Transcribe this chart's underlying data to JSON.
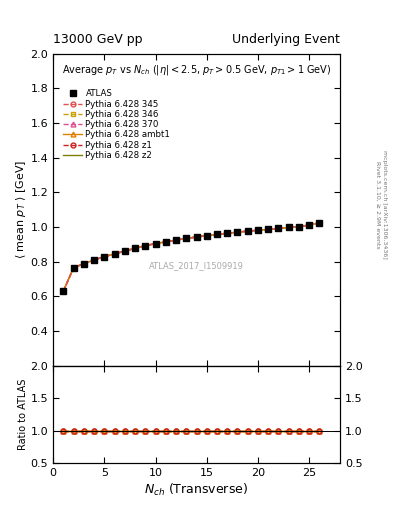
{
  "title_left": "13000 GeV pp",
  "title_right": "Underlying Event",
  "plot_title": "Average $p_T$ vs $N_{ch}$ ($|\\eta| < 2.5$, $p_T > 0.5$ GeV, $p_{T1} > 1$ GeV)",
  "watermark": "ATLAS_2017_I1509919",
  "ylabel_main": "$\\langle$ mean $p_T$ $\\rangle$ [GeV]",
  "ylabel_ratio": "Ratio to ATLAS",
  "xlabel": "$N_{ch}$ (Transverse)",
  "right_label_top": "Rivet 3.1.10, ≥ 2.9M events",
  "right_label_bot": "mcplots.cern.ch [arXiv:1306.3436]",
  "ylim_main": [
    0.2,
    2.0
  ],
  "ylim_ratio": [
    0.5,
    2.0
  ],
  "xlim": [
    0,
    28
  ],
  "nch_data": [
    1,
    2,
    3,
    4,
    5,
    6,
    7,
    8,
    9,
    10,
    11,
    12,
    13,
    14,
    15,
    16,
    17,
    18,
    19,
    20,
    21,
    22,
    23,
    24,
    25,
    26
  ],
  "atlas_y": [
    0.63,
    0.765,
    0.79,
    0.81,
    0.83,
    0.845,
    0.862,
    0.878,
    0.893,
    0.905,
    0.915,
    0.925,
    0.935,
    0.943,
    0.951,
    0.958,
    0.965,
    0.971,
    0.977,
    0.982,
    0.987,
    0.993,
    0.998,
    1.003,
    1.012,
    1.025
  ],
  "color_345": "#e05050",
  "color_346": "#c8a000",
  "color_370": "#e05090",
  "color_ambt1": "#e08000",
  "color_z1": "#cc2020",
  "color_z2": "#808000",
  "yticks_main": [
    0.4,
    0.6,
    0.8,
    1.0,
    1.2,
    1.4,
    1.6,
    1.8,
    2.0
  ],
  "yticks_ratio": [
    0.5,
    1.0,
    1.5,
    2.0
  ],
  "xticks": [
    0,
    5,
    10,
    15,
    20,
    25
  ]
}
